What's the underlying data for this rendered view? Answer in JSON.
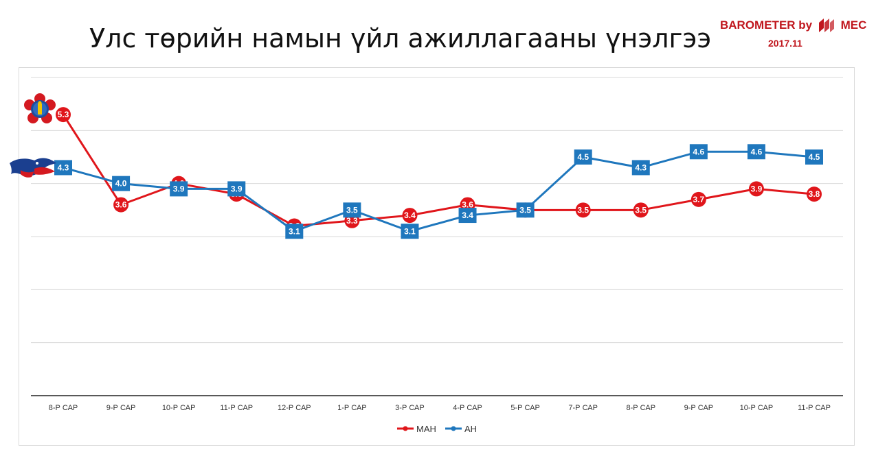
{
  "header": {
    "title": "Улс төрийн намын үйл ажиллагааны үнэлгээ",
    "brand_prefix": "BAROMETER by",
    "brand_suffix": "MEC",
    "date": "2017.11"
  },
  "colors": {
    "MAH": "#e0161b",
    "AH": "#1f77bd",
    "brand": "#c0161d",
    "grid": "#d9d9d9",
    "axis": "#222222"
  },
  "emblems": {
    "mah": "mah-party-emblem-icon",
    "ah": "ah-party-horse-icon"
  },
  "chart_data": {
    "type": "line",
    "categories": [
      "8-Р САР",
      "9-Р САР",
      "10-Р САР",
      "11-Р САР",
      "12-Р САР",
      "1-Р САР",
      "3-Р САР",
      "4-Р САР",
      "5-Р САР",
      "7-Р САР",
      "8-Р САР",
      "9-Р САР",
      "10-Р САР",
      "11-Р САР"
    ],
    "series": [
      {
        "name": "МАН",
        "values": [
          5.3,
          3.6,
          4.0,
          3.8,
          3.2,
          3.3,
          3.4,
          3.6,
          3.5,
          3.5,
          3.5,
          3.7,
          3.9,
          3.8
        ]
      },
      {
        "name": "АН",
        "values": [
          4.3,
          4.0,
          3.9,
          3.9,
          3.1,
          3.5,
          3.1,
          3.4,
          3.5,
          4.5,
          4.3,
          4.6,
          4.6,
          4.5
        ]
      }
    ],
    "ylim": [
      0,
      6
    ],
    "grid": true,
    "legend": "bottom-center"
  }
}
